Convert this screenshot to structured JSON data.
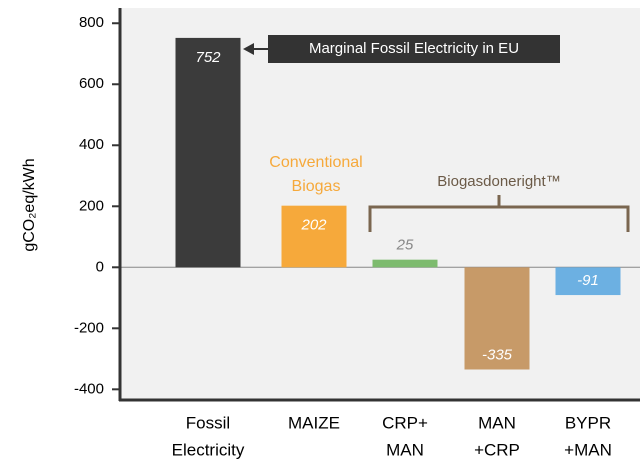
{
  "chart_data": {
    "type": "bar",
    "ylabel": "gCO₂eq/kWh",
    "categories": [
      [
        "Fossil",
        "Electricity"
      ],
      [
        "MAIZE"
      ],
      [
        "CRP+",
        "MAN"
      ],
      [
        "MAN",
        "+CRP"
      ],
      [
        "BYPR",
        "+MAN"
      ]
    ],
    "values": [
      752,
      202,
      25,
      -335,
      -91
    ],
    "colors": [
      "#3b3b3b",
      "#f6a93b",
      "#7dbb6e",
      "#c79a68",
      "#6cb0e2"
    ],
    "ylim": [
      -435,
      850
    ],
    "yticks": [
      800,
      600,
      400,
      200,
      0,
      -200,
      -400
    ],
    "annotations": [
      [
        "Marginal Fossil Electricity in EU"
      ],
      [
        "Conventional",
        "Biogas"
      ],
      [
        "Biogasdoneright™"
      ]
    ]
  }
}
